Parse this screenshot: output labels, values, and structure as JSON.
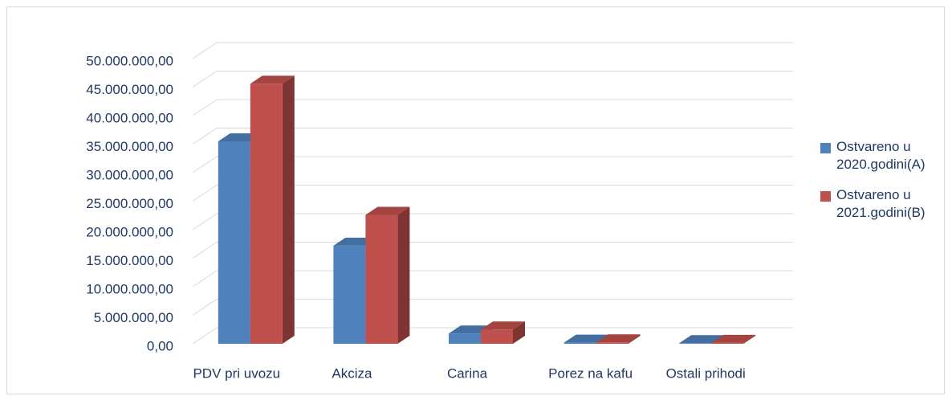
{
  "chart_data": {
    "type": "bar3d",
    "categories": [
      "PDV pri uvozu",
      "Akciza",
      "Carina",
      "Porez na kafu",
      "Ostali prihodi"
    ],
    "series": [
      {
        "name": "Ostvareno u 2020.godini(A)",
        "color": "#4f81bd",
        "values": [
          35500000,
          17200000,
          1800000,
          200000,
          100000
        ]
      },
      {
        "name": "Ostvareno u 2021.godini(B)",
        "color": "#c0504d",
        "values": [
          45600000,
          22600000,
          2500000,
          250000,
          150000
        ]
      }
    ],
    "ylim": [
      0,
      50000000
    ],
    "yticks": [
      {
        "value": 0,
        "label": "0,00"
      },
      {
        "value": 5000000,
        "label": "5.000.000,00"
      },
      {
        "value": 10000000,
        "label": "10.000.000,00"
      },
      {
        "value": 15000000,
        "label": "15.000.000,00"
      },
      {
        "value": 20000000,
        "label": "20.000.000,00"
      },
      {
        "value": 25000000,
        "label": "25.000.000,00"
      },
      {
        "value": 30000000,
        "label": "30.000.000,00"
      },
      {
        "value": 35000000,
        "label": "35.000.000,00"
      },
      {
        "value": 40000000,
        "label": "40.000.000,00"
      },
      {
        "value": 45000000,
        "label": "45.000.000,00"
      },
      {
        "value": 50000000,
        "label": "50.000.000,00"
      }
    ],
    "grid": true,
    "legend": "right"
  }
}
